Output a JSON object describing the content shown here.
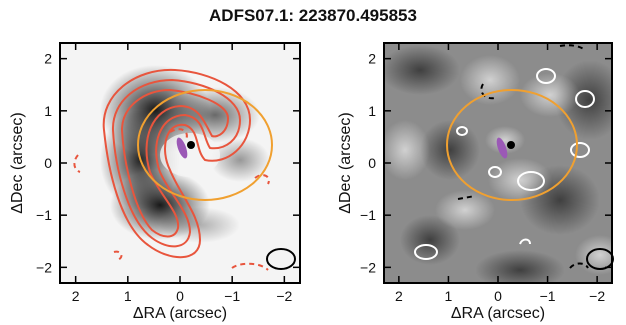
{
  "title": "ADFS07.1: 223870.495853",
  "chart_data": [
    {
      "type": "heatmap",
      "panel": "left",
      "xlabel": "ΔRA (arcsec)",
      "ylabel": "ΔDec (arcsec)",
      "xlim": [
        2.3,
        -2.3
      ],
      "ylim": [
        -2.3,
        2.3
      ],
      "xticks": [
        2,
        1,
        0,
        -1,
        -2
      ],
      "yticks": [
        2,
        1,
        0,
        -1,
        -2
      ],
      "xtick_labels": [
        "2",
        "1",
        "0",
        "−1",
        "−2"
      ],
      "ytick_labels": [
        "2",
        "1",
        "0",
        "−1",
        "−2"
      ],
      "colormap": "grayscale, dark = high flux",
      "contour_color": "#e8553d",
      "ellipse_color": "#f0a030",
      "marker_color": "#9b59b6",
      "beam_color": "#000000",
      "source_position": [
        -0.1,
        0.3
      ],
      "ellipse": {
        "center": [
          -0.25,
          0.15
        ],
        "semi_axes": [
          1.3,
          1.05
        ]
      }
    },
    {
      "type": "heatmap",
      "panel": "right",
      "xlabel": "ΔRA (arcsec)",
      "ylabel": "ΔDec (arcsec)",
      "xlim": [
        2.3,
        -2.3
      ],
      "ylim": [
        -2.3,
        2.3
      ],
      "xticks": [
        2,
        1,
        0,
        -1,
        -2
      ],
      "yticks": [
        2,
        1,
        0,
        -1,
        -2
      ],
      "xtick_labels": [
        "2",
        "1",
        "0",
        "−1",
        "−2"
      ],
      "ytick_labels": [
        "2",
        "1",
        "0",
        "−1",
        "−2"
      ],
      "colormap": "grayscale residual map",
      "contour_color": "#ffffff",
      "ellipse_color": "#f0a030",
      "marker_color": "#9b59b6",
      "beam_color": "#000000",
      "source_position": [
        -0.1,
        0.3
      ],
      "ellipse": {
        "center": [
          0.05,
          0.15
        ],
        "semi_axes": [
          1.3,
          1.05
        ]
      }
    }
  ]
}
